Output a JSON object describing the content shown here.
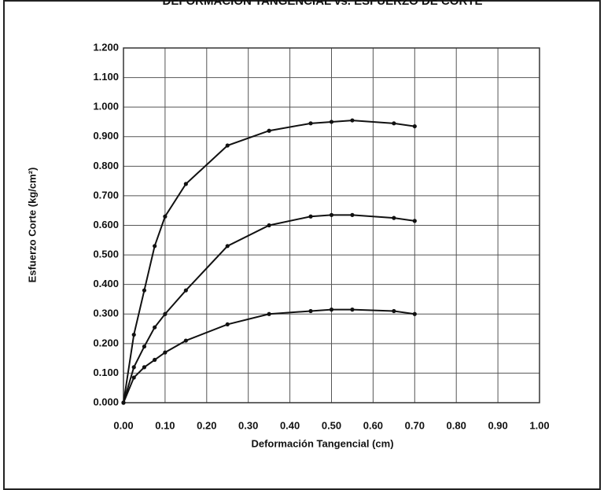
{
  "chart_data": {
    "type": "line",
    "title": "DEFORMACIÓN TANGENCIAL vs. ESFUERZO DE CORTE",
    "x_label": "Deformación Tangencial (cm)",
    "y_label": "Esfuerzo Corte (kg/cm²)",
    "x": [
      0,
      0.025,
      0.05,
      0.075,
      0.1,
      0.15,
      0.25,
      0.35,
      0.45,
      0.5,
      0.55,
      0.65,
      0.7
    ],
    "series": [
      {
        "color": "#111111",
        "values": [
          0,
          0.23,
          0.38,
          0.53,
          0.63,
          0.74,
          0.87,
          0.92,
          0.945,
          0.95,
          0.955,
          0.945,
          0.935
        ]
      },
      {
        "color": "#111111",
        "values": [
          0,
          0.12,
          0.19,
          0.255,
          0.3,
          0.38,
          0.53,
          0.6,
          0.63,
          0.635,
          0.635,
          0.625,
          0.615
        ]
      },
      {
        "color": "#111111",
        "values": [
          0,
          0.085,
          0.12,
          0.145,
          0.17,
          0.21,
          0.265,
          0.3,
          0.31,
          0.315,
          0.315,
          0.31,
          0.3
        ]
      }
    ],
    "xlim": [
      0,
      1
    ],
    "ylim": [
      0,
      1.2
    ],
    "xticks": [
      {
        "value": 0,
        "label": "0.00"
      },
      {
        "value": 0.1,
        "label": "0.10"
      },
      {
        "value": 0.2,
        "label": "0.20"
      },
      {
        "value": 0.3,
        "label": "0.30"
      },
      {
        "value": 0.4,
        "label": "0.40"
      },
      {
        "value": 0.5,
        "label": "0.50"
      },
      {
        "value": 0.6,
        "label": "0.60"
      },
      {
        "value": 0.7,
        "label": "0.70"
      },
      {
        "value": 0.8,
        "label": "0.80"
      },
      {
        "value": 0.9,
        "label": "0.90"
      },
      {
        "value": 1,
        "label": "1.00"
      }
    ],
    "yticks": [
      {
        "value": 0,
        "label": "0.000"
      },
      {
        "value": 0.1,
        "label": "0.100"
      },
      {
        "value": 0.2,
        "label": "0.200"
      },
      {
        "value": 0.3,
        "label": "0.300"
      },
      {
        "value": 0.4,
        "label": "0.400"
      },
      {
        "value": 0.5,
        "label": "0.500"
      },
      {
        "value": 0.6,
        "label": "0.600"
      },
      {
        "value": 0.7,
        "label": "0.700"
      },
      {
        "value": 0.8,
        "label": "0.800"
      },
      {
        "value": 0.9,
        "label": "0.900"
      },
      {
        "value": 1,
        "label": "1.000"
      },
      {
        "value": 1.1,
        "label": "1.100"
      },
      {
        "value": 1.2,
        "label": "1.200"
      }
    ],
    "grid": true
  }
}
